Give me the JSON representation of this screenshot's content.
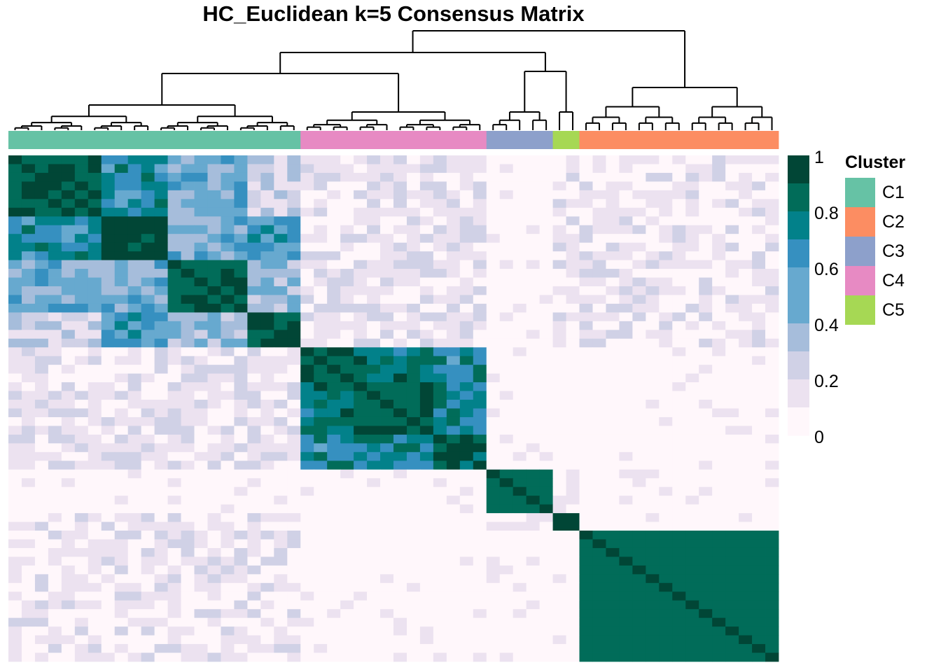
{
  "chart_data": {
    "type": "heatmap",
    "title": "HC_Euclidean k=5 Consensus Matrix",
    "value_range": [
      0,
      1
    ],
    "color_scale": {
      "ticks": [
        "1",
        "0.8",
        "0.6",
        "0.4",
        "0.2",
        "0"
      ],
      "colors": [
        "#014636",
        "#016C59",
        "#02818A",
        "#3690C0",
        "#67A9CF",
        "#A6BDDB",
        "#D0D1E6",
        "#ECE2F0",
        "#FFF7FB"
      ]
    },
    "legend": {
      "title": "Cluster",
      "entries": [
        {
          "label": "C1",
          "color": "#66C2A5"
        },
        {
          "label": "C2",
          "color": "#FC8D62"
        },
        {
          "label": "C3",
          "color": "#8DA0CB"
        },
        {
          "label": "C4",
          "color": "#E78AC3"
        },
        {
          "label": "C5",
          "color": "#A6D854"
        }
      ]
    },
    "column_cluster_order": [
      "C1",
      "C4",
      "C3",
      "C5",
      "C2"
    ],
    "cluster_sizes": [
      22,
      14,
      5,
      2,
      15
    ],
    "blocks": [
      [
        0.93,
        0.12,
        0.02,
        0.08,
        0.08
      ],
      [
        0.12,
        0.82,
        0.02,
        0.01,
        0.03
      ],
      [
        0.02,
        0.02,
        0.88,
        0.05,
        0.01
      ],
      [
        0.08,
        0.01,
        0.05,
        0.95,
        0.01
      ],
      [
        0.08,
        0.03,
        0.01,
        0.01,
        0.88
      ]
    ],
    "c1_subblocks": [
      [
        0.97,
        0.68,
        0.45,
        0.25
      ],
      [
        0.68,
        0.98,
        0.5,
        0.6
      ],
      [
        0.45,
        0.5,
        0.93,
        0.4
      ],
      [
        0.25,
        0.6,
        0.4,
        0.96
      ]
    ],
    "c1_subblock_sizes": [
      7,
      5,
      6,
      4
    ],
    "c4_subblocks": [
      [
        0.92,
        0.8,
        0.7
      ],
      [
        0.8,
        0.93,
        0.72
      ],
      [
        0.7,
        0.72,
        0.85
      ]
    ],
    "c4_subblock_sizes": [
      4,
      6,
      4
    ],
    "dendrogram": {
      "order": [
        "C1",
        "C4",
        "C3",
        "C5",
        "C2"
      ]
    }
  }
}
